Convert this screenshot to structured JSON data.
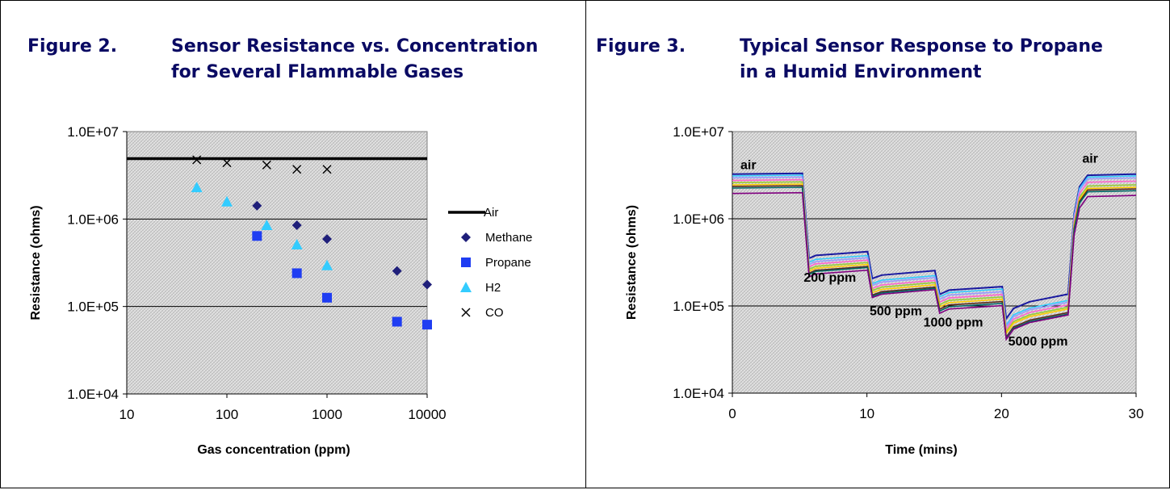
{
  "figures": [
    {
      "label": "Figure 2.",
      "title_line1": "Sensor Resistance vs. Concentration",
      "title_line2": "for Several Flammable Gases"
    },
    {
      "label": "Figure 3.",
      "title_line1": "Typical Sensor Response to Propane",
      "title_line2": "in a Humid Environment"
    }
  ],
  "chart_data": [
    {
      "type": "scatter",
      "xlabel": "Gas concentration (ppm)",
      "ylabel": "Resistance (ohms)",
      "x_scale": "log",
      "y_scale": "log",
      "xlim": [
        10,
        10000
      ],
      "ylim": [
        10000,
        10000000
      ],
      "x_ticks": [
        "10",
        "100",
        "1000",
        "10000"
      ],
      "y_ticks": [
        "1.0E+04",
        "1.0E+05",
        "1.0E+06",
        "1.0E+07"
      ],
      "grid": "horizontal",
      "legend_position": "right",
      "series": [
        {
          "name": "Air",
          "kind": "line",
          "color": "#000000",
          "x": [
            10,
            10000
          ],
          "y": [
            4900000,
            4900000
          ]
        },
        {
          "name": "Methane",
          "marker": "diamond",
          "color": "#1f1f7a",
          "x": [
            200,
            500,
            1000,
            5000,
            10000
          ],
          "y": [
            1420000,
            850000,
            590000,
            255000,
            178000
          ]
        },
        {
          "name": "Propane",
          "marker": "square",
          "color": "#1f3df2",
          "x": [
            200,
            500,
            1000,
            5000,
            10000
          ],
          "y": [
            640000,
            240000,
            126000,
            67000,
            62000
          ]
        },
        {
          "name": "H2",
          "marker": "triangle",
          "color": "#33ccff",
          "x": [
            50,
            100,
            250,
            500,
            1000
          ],
          "y": [
            2300000,
            1580000,
            850000,
            510000,
            295000
          ]
        },
        {
          "name": "CO",
          "marker": "cross",
          "color": "#000000",
          "x": [
            50,
            100,
            250,
            500,
            1000
          ],
          "y": [
            4750000,
            4400000,
            4150000,
            3700000,
            3700000
          ]
        }
      ]
    },
    {
      "type": "line",
      "xlabel": "Time (mins)",
      "ylabel": "Resistance (ohms)",
      "y_scale": "log",
      "xlim": [
        0,
        30
      ],
      "ylim": [
        10000,
        10000000
      ],
      "x_ticks": [
        "0",
        "10",
        "20",
        "30"
      ],
      "y_ticks": [
        "1.0E+04",
        "1.0E+05",
        "1.0E+06",
        "1.0E+07"
      ],
      "grid": "horizontal",
      "annotations": [
        {
          "text": "air",
          "x": 0.6,
          "y": 3700000
        },
        {
          "text": "air",
          "x": 26.0,
          "y": 4400000
        },
        {
          "text": "200 ppm",
          "x": 5.3,
          "y": 190000
        },
        {
          "text": "500 ppm",
          "x": 10.2,
          "y": 78000
        },
        {
          "text": "1000 ppm",
          "x": 14.2,
          "y": 58000
        },
        {
          "text": "5000 ppm",
          "x": 20.5,
          "y": 35000
        }
      ],
      "series": [
        {
          "color": "#1a1aa0",
          "levels": [
            3250000,
            400000,
            240000,
            160000,
            130000,
            3250000
          ]
        },
        {
          "color": "#33ccff",
          "levels": [
            3100000,
            360000,
            210000,
            150000,
            110000,
            3100000
          ]
        },
        {
          "color": "#9999ff",
          "levels": [
            2950000,
            340000,
            200000,
            140000,
            105000,
            2950000
          ]
        },
        {
          "color": "#ff66cc",
          "levels": [
            2750000,
            320000,
            185000,
            130000,
            98000,
            2700000
          ]
        },
        {
          "color": "#99cc33",
          "levels": [
            2600000,
            300000,
            175000,
            122000,
            92000,
            2450000
          ]
        },
        {
          "color": "#ffcc00",
          "levels": [
            2450000,
            285000,
            165000,
            115000,
            88000,
            2300000
          ]
        },
        {
          "color": "#5a2a1a",
          "levels": [
            2350000,
            270000,
            155000,
            108000,
            80000,
            2200000
          ]
        },
        {
          "color": "#006666",
          "levels": [
            2250000,
            262000,
            150000,
            103000,
            77000,
            2100000
          ]
        },
        {
          "color": "#800080",
          "levels": [
            1950000,
            245000,
            145000,
            97000,
            75000,
            1850000
          ]
        }
      ]
    }
  ]
}
